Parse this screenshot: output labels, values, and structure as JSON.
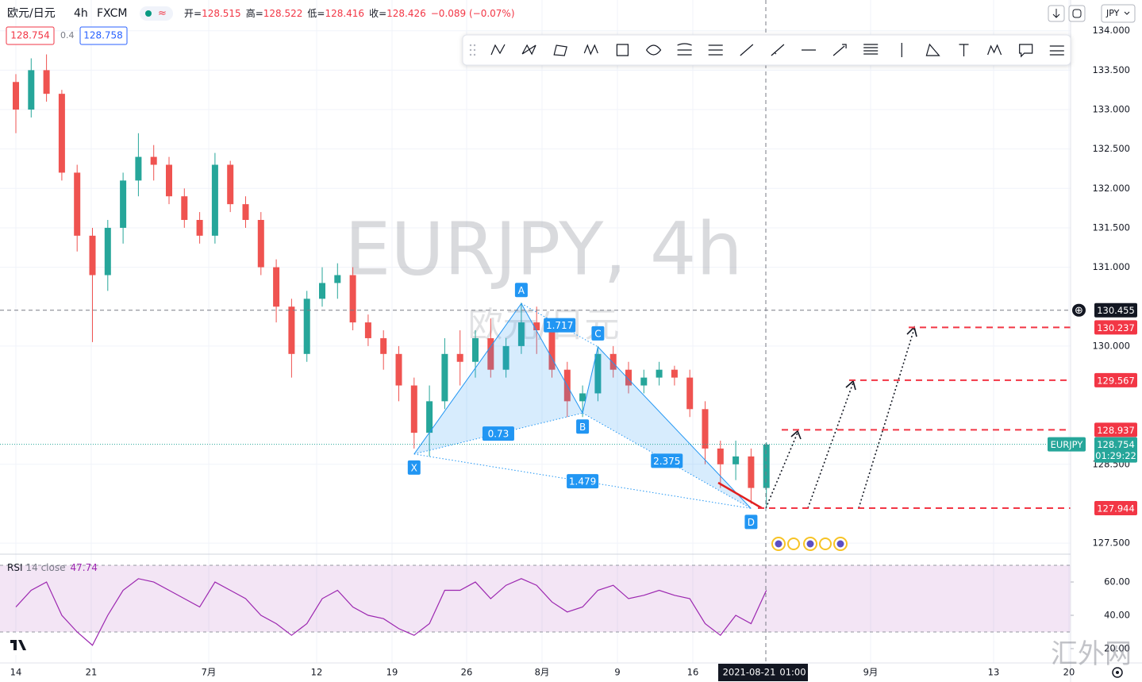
{
  "header": {
    "symbol": "欧元/日元",
    "interval": "4h",
    "source": "FXCM",
    "ohlc": [
      {
        "label": "开=",
        "value": "128.515"
      },
      {
        "label": "高=",
        "value": "128.522"
      },
      {
        "label": "低=",
        "value": "128.416"
      },
      {
        "label": "收=",
        "value": "128.426"
      }
    ],
    "change": "−0.089 (−0.07%)",
    "bid": "128.754",
    "spread": "0.4",
    "ask": "128.758",
    "currency": "JPY",
    "watermark": "EURJPY, 4h",
    "watermark_sub": "欧元/日元",
    "site_mark": "汇外网"
  },
  "chart_data": {
    "type": "candlestick",
    "open": [
      133.35,
      133.0,
      133.5,
      133.2,
      132.2,
      131.4,
      130.9,
      131.5,
      132.1,
      132.4,
      132.3,
      131.9,
      131.6,
      131.4,
      132.3,
      131.8,
      131.6,
      131.0,
      130.5,
      129.9,
      130.6,
      130.8,
      130.9,
      130.3,
      130.1,
      129.9,
      129.5,
      128.9,
      129.3,
      129.9,
      129.8,
      130.1,
      129.7,
      130.0,
      130.3,
      130.2,
      129.7,
      129.3,
      129.4,
      129.9,
      129.7,
      129.5,
      129.6,
      129.7,
      129.6,
      129.2,
      128.7,
      128.5,
      128.6,
      128.2
    ],
    "high": [
      133.45,
      133.65,
      133.7,
      133.25,
      132.3,
      131.5,
      131.6,
      132.2,
      132.7,
      132.55,
      132.4,
      132.0,
      131.7,
      132.45,
      132.35,
      131.9,
      131.7,
      131.1,
      130.6,
      130.7,
      131.0,
      131.05,
      131.0,
      130.4,
      130.2,
      130.0,
      129.6,
      129.5,
      130.1,
      130.2,
      130.2,
      130.35,
      130.1,
      130.55,
      130.5,
      130.3,
      129.8,
      129.5,
      130.0,
      130.0,
      129.8,
      129.7,
      129.8,
      129.75,
      129.7,
      129.3,
      128.8,
      128.8,
      128.7,
      128.78
    ],
    "low": [
      132.7,
      132.9,
      133.1,
      132.1,
      131.2,
      130.05,
      130.7,
      131.3,
      131.9,
      132.1,
      131.8,
      131.5,
      131.3,
      131.3,
      131.7,
      131.5,
      130.9,
      130.3,
      129.6,
      129.8,
      130.5,
      130.6,
      130.2,
      130.0,
      129.7,
      129.3,
      128.7,
      128.6,
      129.2,
      129.5,
      129.6,
      129.6,
      129.6,
      129.9,
      129.9,
      129.6,
      129.1,
      129.1,
      129.3,
      129.6,
      129.4,
      129.4,
      129.5,
      129.5,
      129.1,
      128.5,
      128.2,
      128.3,
      128.0,
      127.94
    ],
    "close": [
      133.0,
      133.5,
      133.2,
      132.2,
      131.4,
      130.9,
      131.5,
      132.1,
      132.4,
      132.3,
      131.9,
      131.6,
      131.4,
      132.3,
      131.8,
      131.6,
      131.0,
      130.5,
      129.9,
      130.6,
      130.8,
      130.9,
      130.3,
      130.1,
      129.9,
      129.5,
      128.9,
      129.3,
      129.9,
      129.8,
      130.1,
      129.7,
      130.0,
      130.3,
      130.2,
      129.7,
      129.3,
      129.4,
      129.9,
      129.7,
      129.5,
      129.6,
      129.7,
      129.6,
      129.2,
      128.7,
      128.5,
      128.6,
      128.2,
      128.75
    ],
    "up_color": "#26a69a",
    "down_color": "#ef5350",
    "x_labels": [
      "14",
      "21",
      "7月",
      "12",
      "19",
      "26",
      "8月",
      "9",
      "16",
      "9月",
      "13",
      "20"
    ],
    "crosshair_date": "2021-08-21",
    "crosshair_time": "01:00",
    "ylim": [
      127.36,
      134.39
    ],
    "yticks": [
      {
        "value": 134,
        "label": "134.000"
      },
      {
        "value": 133.5,
        "label": "133.500"
      },
      {
        "value": 133,
        "label": "133.000"
      },
      {
        "value": 132.5,
        "label": "132.500"
      },
      {
        "value": 132,
        "label": "132.000"
      },
      {
        "value": 131.5,
        "label": "131.500"
      },
      {
        "value": 131,
        "label": "131.000"
      },
      {
        "value": 130,
        "label": "130.000"
      },
      {
        "value": 128.5,
        "label": "128.500"
      },
      {
        "value": 127.5,
        "label": "127.500"
      }
    ],
    "grid": true,
    "crosshair_price": 130.455,
    "last_price": 128.754,
    "last_price_symbol": "EURJPY",
    "countdown": "01:29:22",
    "levels": [
      130.237,
      129.567,
      128.937,
      127.944
    ],
    "level_color": "#f23645",
    "pattern": {
      "color": "#2196f3",
      "points": [
        {
          "name": "X",
          "x": 26,
          "price": 128.63
        },
        {
          "name": "A",
          "x": 33,
          "price": 130.54
        },
        {
          "name": "B",
          "x": 37,
          "price": 129.15
        },
        {
          "name": "C",
          "x": 38,
          "price": 129.99
        },
        {
          "name": "D",
          "x": 48,
          "price": 127.94
        }
      ],
      "ratios": [
        {
          "from": 0,
          "to": 2,
          "value": 0.73
        },
        {
          "from": 1,
          "to": 3,
          "value": 1.717
        },
        {
          "from": 2,
          "to": 4,
          "value": 2.375
        },
        {
          "from": 0,
          "to": 4,
          "value": 1.479
        }
      ]
    },
    "rsi": {
      "name": "RSI",
      "params": "14 close",
      "value": 47.74,
      "color": "#9c27b0",
      "values": [
        45,
        55,
        60,
        40,
        30,
        22,
        40,
        55,
        62,
        60,
        55,
        50,
        45,
        60,
        55,
        50,
        40,
        35,
        28,
        35,
        50,
        55,
        45,
        40,
        38,
        32,
        28,
        35,
        55,
        55,
        60,
        50,
        58,
        62,
        58,
        48,
        42,
        45,
        55,
        58,
        50,
        52,
        55,
        52,
        50,
        35,
        28,
        40,
        35,
        55
      ],
      "ylim": [
        11.4,
        76.7
      ],
      "yticks": [
        {
          "value": 60,
          "label": "60.00"
        },
        {
          "value": 40,
          "label": "40.00"
        },
        {
          "value": 20,
          "label": "20.00"
        }
      ],
      "band": [
        30,
        70
      ]
    }
  }
}
